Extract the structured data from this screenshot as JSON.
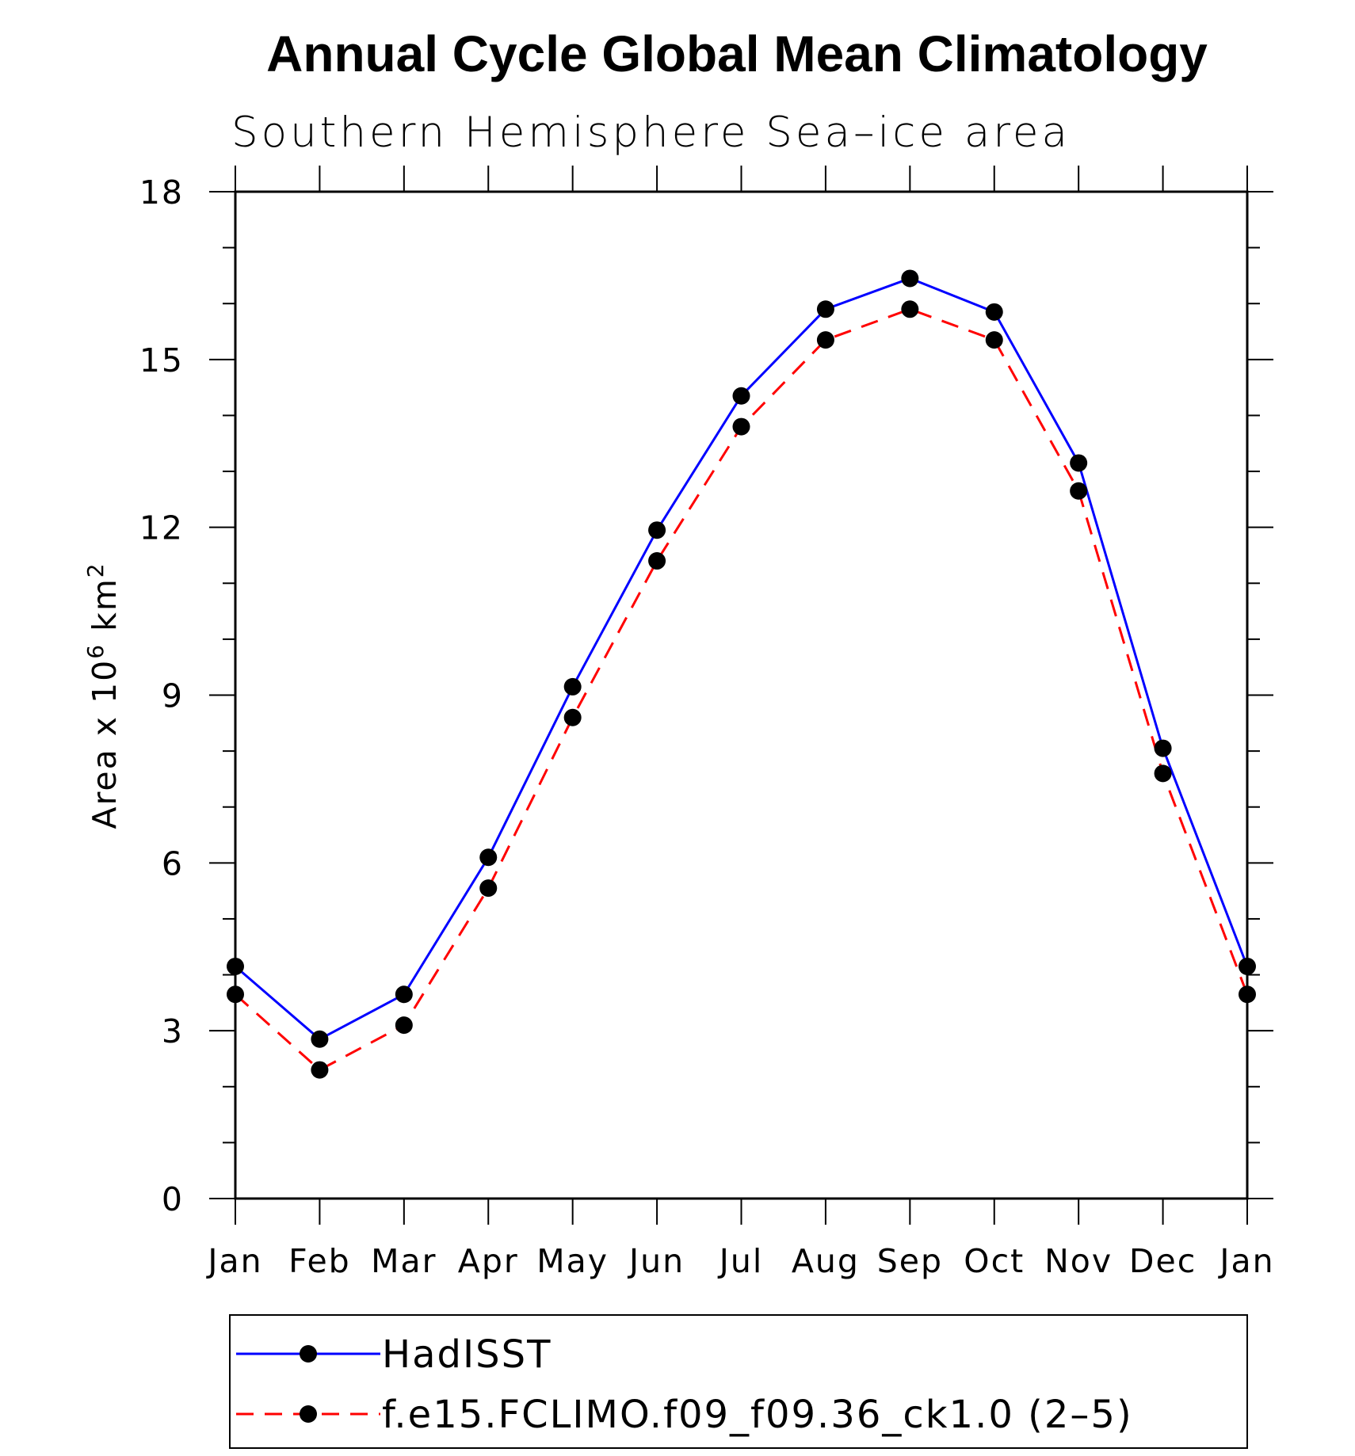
{
  "chart_data": {
    "type": "line",
    "title": "Annual Cycle Global Mean Climatology",
    "subtitle": "Southern Hemisphere Sea–ice area",
    "ylabel_main": "Area x 10",
    "ylabel_sup": "6",
    "ylabel_unit": " km",
    "ylabel_unit_sup": "2",
    "xlabel": "",
    "categories": [
      "Jan",
      "Feb",
      "Mar",
      "Apr",
      "May",
      "Jun",
      "Jul",
      "Aug",
      "Sep",
      "Oct",
      "Nov",
      "Dec",
      "Jan"
    ],
    "ylim": [
      0,
      18
    ],
    "yticks": [
      "0",
      "3",
      "6",
      "9",
      "12",
      "15",
      "18"
    ],
    "legend_position": "bottom",
    "series": [
      {
        "name": "HadISST",
        "color": "#0000ff",
        "dash": "solid",
        "values": [
          4.15,
          2.85,
          3.65,
          6.1,
          9.15,
          11.95,
          14.35,
          15.9,
          16.45,
          15.85,
          13.15,
          8.05,
          4.15
        ]
      },
      {
        "name": "f.e15.FCLIMO.f09_f09.36_ck1.0 (2–5)",
        "color": "#ff0000",
        "dash": "dashed",
        "values": [
          3.65,
          2.3,
          3.1,
          5.55,
          8.6,
          11.4,
          13.8,
          15.35,
          15.9,
          15.35,
          12.65,
          7.6,
          3.65
        ]
      }
    ]
  }
}
